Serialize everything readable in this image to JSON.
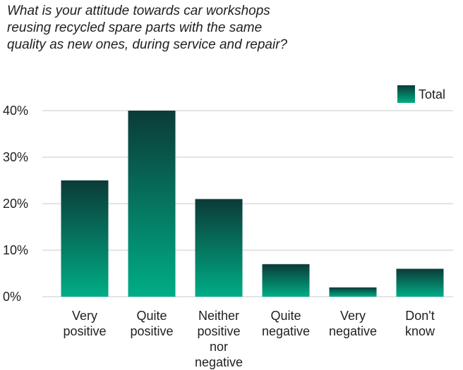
{
  "chart_data": {
    "type": "bar",
    "title": "What is your attitude towards car workshops reusing recycled spare parts with the same quality as new ones, during service and repair?",
    "title_lines": [
      "What is your attitude towards car workshops",
      "reusing recycled spare parts with the same",
      "quality as new ones, during service and repair?"
    ],
    "categories": [
      "Very positive",
      "Quite positive",
      "Neither positive nor negative",
      "Quite negative",
      "Very negative",
      "Don't know"
    ],
    "category_lines": [
      [
        "Very",
        "positive"
      ],
      [
        "Quite",
        "positive"
      ],
      [
        "Neither",
        "positive",
        "nor",
        "negative"
      ],
      [
        "Quite",
        "negative"
      ],
      [
        "Very",
        "negative"
      ],
      [
        "Don't",
        "know"
      ]
    ],
    "series": [
      {
        "name": "Total",
        "values": [
          25,
          40,
          21,
          7,
          2,
          6
        ]
      }
    ],
    "ylim": [
      0,
      40
    ],
    "yticks": [
      0,
      10,
      20,
      30,
      40
    ],
    "ytick_labels": [
      "0%",
      "10%",
      "20%",
      "30%",
      "40%"
    ],
    "xlabel": "",
    "ylabel": "",
    "grid": true,
    "legend_position": "top-right",
    "colors": {
      "bar_top": "#0b3b38",
      "bar_bottom": "#00ad86",
      "grid": "#c8c8c8"
    }
  }
}
